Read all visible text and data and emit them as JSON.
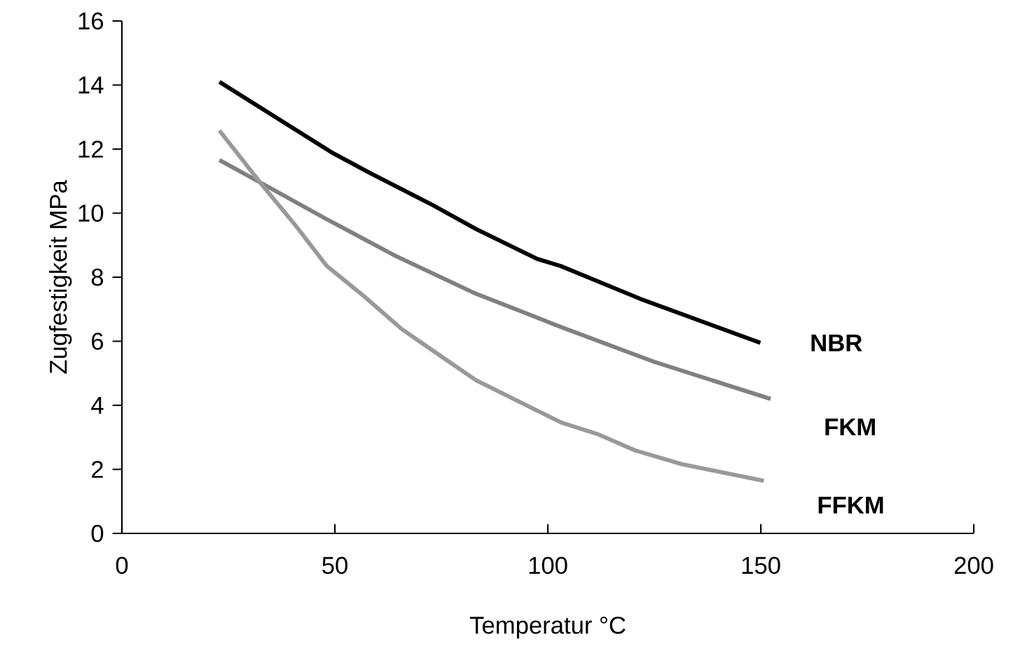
{
  "chart_data": {
    "type": "line",
    "xlabel": "Temperatur    °C",
    "ylabel": "Zugfestigkeit  MPa",
    "xlim": [
      0,
      200
    ],
    "xticks": [
      0,
      50,
      100,
      150,
      200
    ],
    "ylim": [
      0,
      16
    ],
    "yticks": [
      0,
      2,
      4,
      6,
      8,
      10,
      12,
      14,
      16
    ],
    "grid": false,
    "marker": "none",
    "line_style": "solid",
    "series": [
      {
        "name": "NBR",
        "color": "#000000",
        "x": [
          22.9,
          49.2,
          58,
          72.3,
          83.2,
          97.5,
          103,
          121.6,
          149.9
        ],
        "values": [
          14.1,
          11.9,
          11.27,
          10.3,
          9.5,
          8.57,
          8.35,
          7.33,
          5.95
        ]
      },
      {
        "name": "FKM",
        "color": "#808080",
        "x": [
          22.9,
          48.1,
          64.6,
          83.2,
          103,
          124.9,
          152.3
        ],
        "values": [
          11.66,
          9.81,
          8.64,
          7.48,
          6.45,
          5.36,
          4.2
        ]
      },
      {
        "name": "FFKM",
        "color": "#999999",
        "x": [
          22.9,
          32.8,
          40.5,
          48.1,
          56.9,
          65.7,
          74.4,
          83.2,
          94.2,
          103,
          111.7,
          120.5,
          131.5,
          150.7
        ],
        "values": [
          12.58,
          10.9,
          9.66,
          8.35,
          7.4,
          6.38,
          5.58,
          4.78,
          4.05,
          3.47,
          3.1,
          2.59,
          2.16,
          1.64
        ]
      }
    ]
  }
}
